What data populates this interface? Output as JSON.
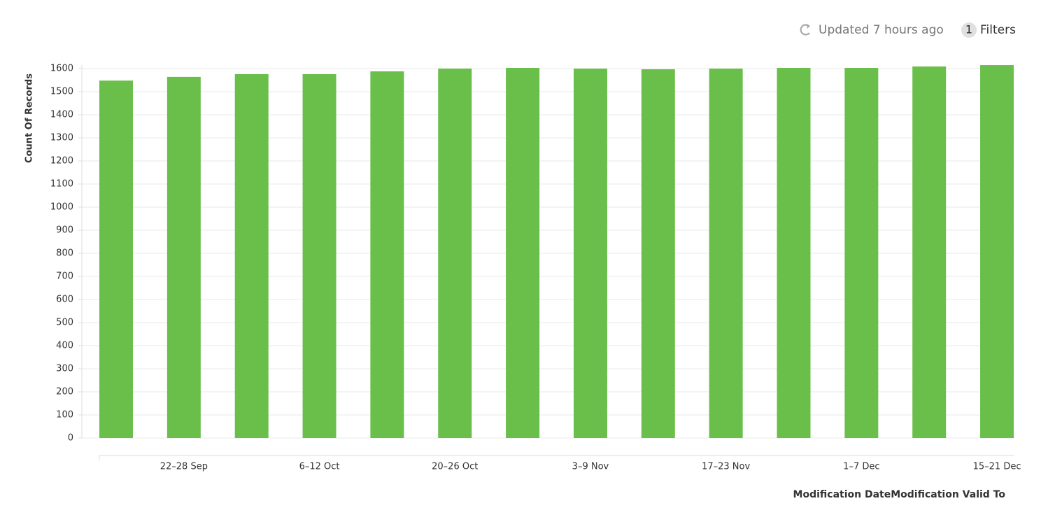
{
  "header": {
    "status": "Updated 7 hours ago",
    "filter_count": 1,
    "filter_label": "Filters"
  },
  "chart_data": {
    "type": "bar",
    "y_label": "Count Of Records",
    "x_label": "Modification DateModification Valid To",
    "categories": [
      null,
      "22–28 Sep",
      null,
      "6–12 Oct",
      null,
      "20–26 Oct",
      null,
      "3–9 Nov",
      null,
      "17–23 Nov",
      null,
      "1–7 Dec",
      null,
      "15–21 Dec"
    ],
    "values": [
      1548,
      1564,
      1576,
      1576,
      1588,
      1600,
      1603,
      1600,
      1597,
      1600,
      1603,
      1603,
      1609,
      1615
    ],
    "color": "#6abf4b",
    "ylim": [
      0,
      1600
    ],
    "yticks": [
      0,
      100,
      200,
      300,
      400,
      500,
      600,
      700,
      800,
      900,
      1000,
      1100,
      1200,
      1300,
      1400,
      1500,
      1600
    ],
    "grid": true
  }
}
